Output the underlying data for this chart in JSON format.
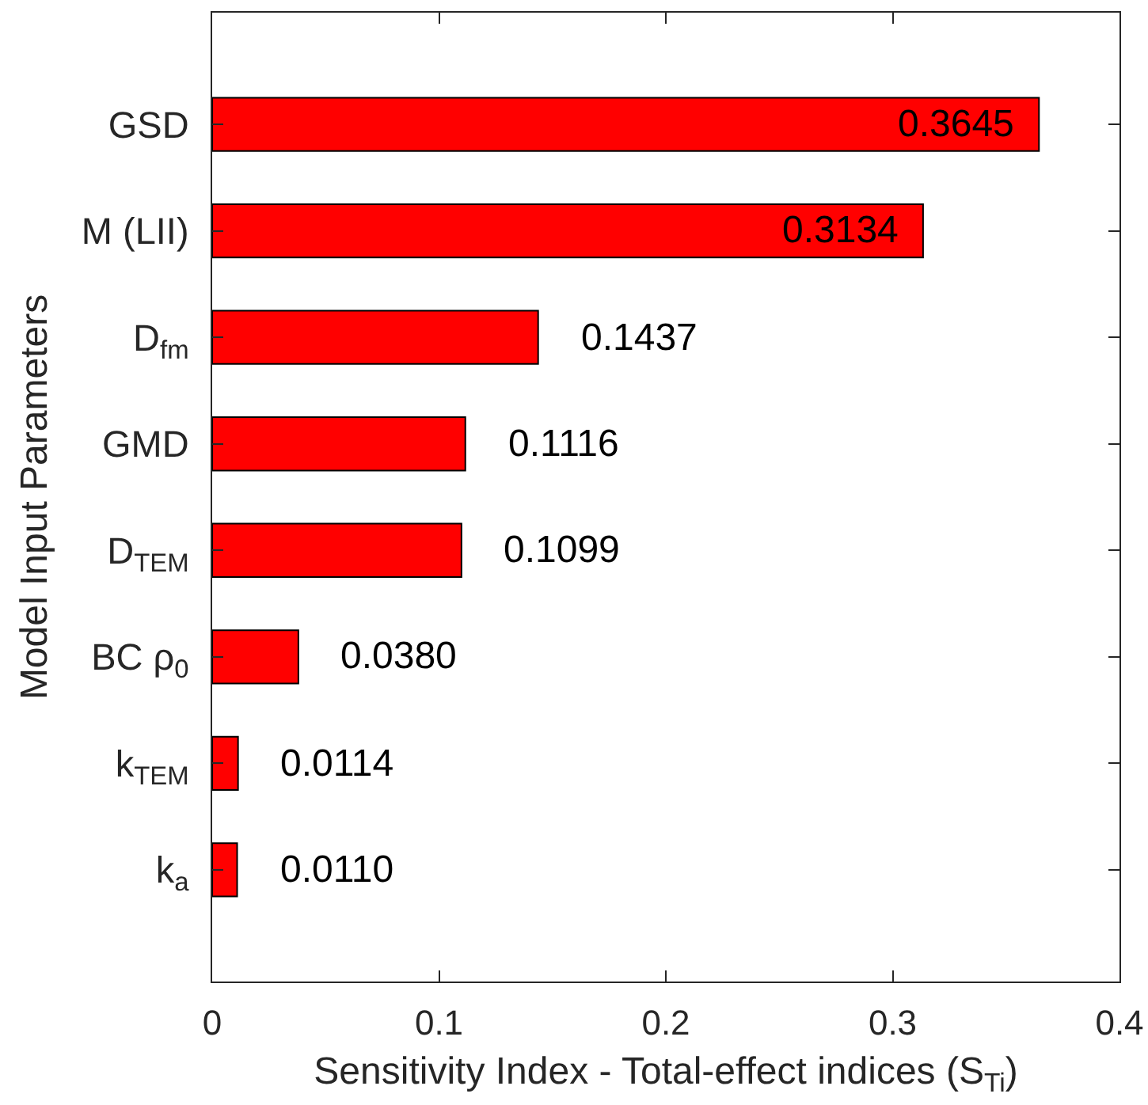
{
  "chart_data": {
    "type": "bar",
    "orientation": "horizontal",
    "xlabel": "Sensitivity Index - Total-effect indices (S$_{Ti}$)",
    "ylabel": "Model Input Parameters",
    "categories": [
      "GSD",
      "M (LII)",
      "D$_{fm}$",
      "GMD",
      "D$_{TEM}$",
      "BC ρ$_{0}$",
      "k$_{TEM}$",
      "k$_{a}$"
    ],
    "values": [
      0.3645,
      0.3134,
      0.1437,
      0.1116,
      0.1099,
      0.038,
      0.0114,
      0.011
    ],
    "value_labels": [
      "0.3645",
      "0.3134",
      "0.1437",
      "0.1116",
      "0.1099",
      "0.0380",
      "0.0114",
      "0.0110"
    ],
    "color": "#ff0000",
    "xlim": [
      0,
      0.4
    ],
    "xticks": [
      0,
      0.1,
      0.2,
      0.3,
      0.4
    ]
  }
}
